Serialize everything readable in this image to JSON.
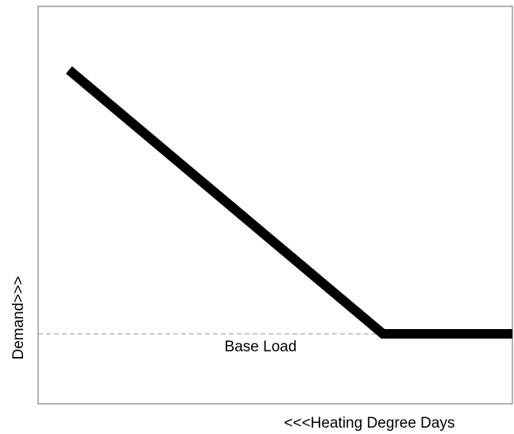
{
  "chart_data": {
    "type": "line",
    "x_label": "<<<Heating Degree Days",
    "y_label": "Demand>>>",
    "x": [
      6.5,
      72.7,
      100
    ],
    "series": [
      {
        "color": "#000000",
        "values": [
          84,
          17.6,
          17.6
        ]
      }
    ],
    "reference_line": {
      "label": "Base Load",
      "value": 17.6,
      "color": "#aaaaaa"
    },
    "xlim": [
      0,
      100
    ],
    "ylim": [
      0,
      100
    ]
  }
}
